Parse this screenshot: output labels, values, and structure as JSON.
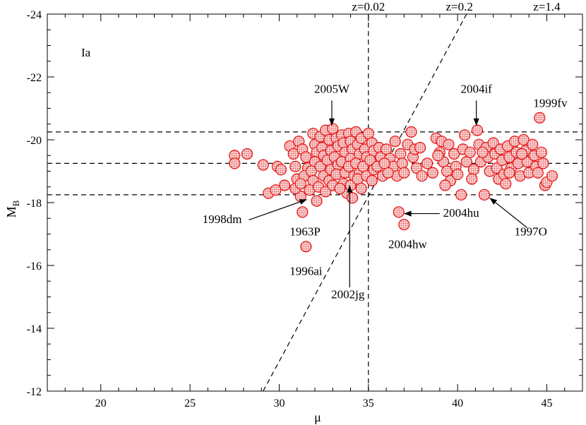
{
  "chart_data": {
    "type": "scatter",
    "panel_label": "Ia",
    "xlabel": "μ",
    "ylabel_main": "M",
    "ylabel_sub": "B",
    "xlim": [
      17,
      47
    ],
    "ylim": [
      -12,
      -24
    ],
    "y_axis_inverted": true,
    "x_ticks": [
      20,
      25,
      30,
      35,
      40,
      45
    ],
    "x_tick_labels": [
      "20",
      "25",
      "30",
      "35",
      "40",
      "45"
    ],
    "y_ticks": [
      -12,
      -14,
      -16,
      -18,
      -20,
      -22,
      -24
    ],
    "y_tick_labels": [
      "-12",
      "-14",
      "-16",
      "-18",
      "-20",
      "-22",
      "-24"
    ],
    "grid": false,
    "marker": {
      "fill": "#f4a0a0",
      "stroke": "#e81010",
      "pattern": "dotted-circle"
    },
    "reference_lines": {
      "horizontal_MB": [
        -20.25,
        -19.25,
        -18.25
      ],
      "vertical_mu": 35,
      "limit_line": {
        "from": [
          29.1,
          -12
        ],
        "to": [
          40.5,
          -24
        ]
      }
    },
    "top_labels": [
      {
        "text": "z=0.02",
        "x": 35
      },
      {
        "text": "z=0.2",
        "x": 40.1
      },
      {
        "text": "z=1.4",
        "x": 45.0
      }
    ],
    "annotations": [
      {
        "text": "2005W",
        "label_at": [
          32.95,
          -21.5
        ],
        "arrow_from": [
          32.95,
          -21.25
        ],
        "arrow_to": [
          32.95,
          -20.45
        ]
      },
      {
        "text": "2004if",
        "label_at": [
          41.05,
          -21.5
        ],
        "arrow_from": [
          41.05,
          -21.25
        ],
        "arrow_to": [
          41.05,
          -20.45
        ]
      },
      {
        "text": "1999fv",
        "label_at": [
          45.2,
          -21.05
        ]
      },
      {
        "text": "1998dm",
        "label_at": [
          26.8,
          -17.35
        ],
        "arrow_from": [
          28.3,
          -17.45
        ],
        "arrow_to": [
          31.55,
          -18.1
        ]
      },
      {
        "text": "1963P",
        "label_at": [
          31.45,
          -16.95
        ]
      },
      {
        "text": "2004hu",
        "label_at": [
          40.2,
          -17.55
        ],
        "arrow_from": [
          39.0,
          -17.65
        ],
        "arrow_to": [
          37.0,
          -17.65
        ]
      },
      {
        "text": "2004hw",
        "label_at": [
          37.2,
          -16.55
        ]
      },
      {
        "text": "1997O",
        "label_at": [
          44.1,
          -16.95
        ],
        "arrow_from": [
          43.9,
          -17.2
        ],
        "arrow_to": [
          41.8,
          -18.15
        ]
      },
      {
        "text": "1996ai",
        "label_at": [
          31.5,
          -15.7
        ]
      },
      {
        "text": "2002jg",
        "label_at": [
          33.85,
          -14.95
        ],
        "arrow_from": [
          33.95,
          -15.3
        ],
        "arrow_to": [
          33.95,
          -18.55
        ]
      }
    ],
    "points": [
      [
        27.5,
        -19.5
      ],
      [
        27.5,
        -19.25
      ],
      [
        28.2,
        -19.55
      ],
      [
        29.1,
        -19.2
      ],
      [
        29.9,
        -19.15
      ],
      [
        30.1,
        -19.05
      ],
      [
        30.3,
        -18.55
      ],
      [
        29.4,
        -18.3
      ],
      [
        29.8,
        -18.4
      ],
      [
        31.3,
        -17.7
      ],
      [
        31.5,
        -16.6
      ],
      [
        31.2,
        -18.2
      ],
      [
        30.6,
        -19.8
      ],
      [
        30.8,
        -19.55
      ],
      [
        30.9,
        -19.15
      ],
      [
        31.0,
        -18.75
      ],
      [
        30.9,
        -18.45
      ],
      [
        31.1,
        -19.95
      ],
      [
        31.3,
        -19.7
      ],
      [
        31.5,
        -19.45
      ],
      [
        31.6,
        -19.1
      ],
      [
        31.4,
        -18.85
      ],
      [
        31.2,
        -18.6
      ],
      [
        31.9,
        -20.2
      ],
      [
        32.0,
        -19.85
      ],
      [
        32.1,
        -19.6
      ],
      [
        32.0,
        -19.3
      ],
      [
        31.8,
        -19.0
      ],
      [
        31.9,
        -18.7
      ],
      [
        31.7,
        -18.4
      ],
      [
        32.3,
        -20.1
      ],
      [
        32.4,
        -19.75
      ],
      [
        32.5,
        -19.5
      ],
      [
        32.3,
        -19.15
      ],
      [
        32.5,
        -18.85
      ],
      [
        32.2,
        -18.5
      ],
      [
        32.6,
        -20.3
      ],
      [
        32.8,
        -20.0
      ],
      [
        32.9,
        -19.65
      ],
      [
        32.7,
        -19.35
      ],
      [
        32.9,
        -19.05
      ],
      [
        32.8,
        -18.7
      ],
      [
        32.6,
        -18.35
      ],
      [
        33.0,
        -20.35
      ],
      [
        33.2,
        -20.05
      ],
      [
        33.3,
        -19.8
      ],
      [
        33.1,
        -19.45
      ],
      [
        33.3,
        -19.2
      ],
      [
        33.2,
        -18.9
      ],
      [
        33.0,
        -18.55
      ],
      [
        33.5,
        -20.15
      ],
      [
        33.6,
        -19.9
      ],
      [
        33.7,
        -19.6
      ],
      [
        33.5,
        -19.3
      ],
      [
        33.7,
        -18.95
      ],
      [
        33.6,
        -18.6
      ],
      [
        33.8,
        -18.3
      ],
      [
        33.9,
        -20.2
      ],
      [
        34.0,
        -19.95
      ],
      [
        34.1,
        -19.7
      ],
      [
        34.0,
        -19.4
      ],
      [
        33.9,
        -19.15
      ],
      [
        34.2,
        -18.85
      ],
      [
        34.0,
        -18.55
      ],
      [
        34.1,
        -18.15
      ],
      [
        34.3,
        -20.25
      ],
      [
        34.4,
        -19.85
      ],
      [
        34.5,
        -19.55
      ],
      [
        34.3,
        -19.25
      ],
      [
        34.5,
        -18.95
      ],
      [
        34.4,
        -18.75
      ],
      [
        34.6,
        -20.05
      ],
      [
        34.8,
        -19.7
      ],
      [
        34.9,
        -19.45
      ],
      [
        34.7,
        -19.15
      ],
      [
        34.9,
        -18.85
      ],
      [
        35.0,
        -20.2
      ],
      [
        35.2,
        -19.9
      ],
      [
        35.3,
        -19.65
      ],
      [
        35.1,
        -19.35
      ],
      [
        35.3,
        -19.05
      ],
      [
        35.2,
        -18.7
      ],
      [
        35.6,
        -19.75
      ],
      [
        35.7,
        -19.45
      ],
      [
        35.5,
        -19.15
      ],
      [
        35.8,
        -18.85
      ],
      [
        36.0,
        -19.7
      ],
      [
        36.2,
        -19.4
      ],
      [
        36.4,
        -19.15
      ],
      [
        36.6,
        -18.85
      ],
      [
        36.1,
        -18.95
      ],
      [
        36.8,
        -19.55
      ],
      [
        36.9,
        -19.25
      ],
      [
        37.0,
        -18.95
      ],
      [
        37.2,
        -19.85
      ],
      [
        37.4,
        -20.25
      ],
      [
        37.5,
        -19.45
      ],
      [
        37.7,
        -19.1
      ],
      [
        37.6,
        -19.7
      ],
      [
        38.0,
        -18.85
      ],
      [
        38.3,
        -19.25
      ],
      [
        38.6,
        -18.95
      ],
      [
        36.7,
        -17.7
      ],
      [
        37.0,
        -17.3
      ],
      [
        38.8,
        -20.05
      ],
      [
        39.0,
        -19.6
      ],
      [
        39.2,
        -19.3
      ],
      [
        39.1,
        -19.95
      ],
      [
        39.4,
        -19.0
      ],
      [
        39.6,
        -18.7
      ],
      [
        39.3,
        -18.55
      ],
      [
        39.8,
        -19.55
      ],
      [
        39.9,
        -19.15
      ],
      [
        40.0,
        -18.9
      ],
      [
        40.2,
        -18.25
      ],
      [
        40.3,
        -19.7
      ],
      [
        40.5,
        -19.3
      ],
      [
        40.4,
        -20.15
      ],
      [
        40.7,
        -19.6
      ],
      [
        40.9,
        -19.05
      ],
      [
        41.1,
        -20.3
      ],
      [
        41.2,
        -19.85
      ],
      [
        41.3,
        -19.3
      ],
      [
        41.5,
        -18.25
      ],
      [
        41.6,
        -19.75
      ],
      [
        41.7,
        -19.45
      ],
      [
        41.8,
        -19.0
      ],
      [
        42.0,
        -19.9
      ],
      [
        42.1,
        -19.55
      ],
      [
        42.2,
        -19.1
      ],
      [
        42.3,
        -18.75
      ],
      [
        42.4,
        -19.7
      ],
      [
        42.5,
        -19.35
      ],
      [
        42.6,
        -18.9
      ],
      [
        42.7,
        -18.6
      ],
      [
        42.8,
        -19.8
      ],
      [
        42.9,
        -19.45
      ],
      [
        43.0,
        -19.1
      ],
      [
        43.2,
        -19.95
      ],
      [
        43.3,
        -19.6
      ],
      [
        43.4,
        -19.25
      ],
      [
        43.5,
        -18.85
      ],
      [
        43.7,
        -20.0
      ],
      [
        43.8,
        -19.65
      ],
      [
        43.9,
        -19.3
      ],
      [
        44.0,
        -18.95
      ],
      [
        44.2,
        -19.85
      ],
      [
        44.3,
        -19.5
      ],
      [
        44.4,
        -19.15
      ],
      [
        44.6,
        -20.7
      ],
      [
        44.7,
        -19.6
      ],
      [
        44.8,
        -19.25
      ],
      [
        44.9,
        -18.55
      ],
      [
        45.0,
        -18.65
      ],
      [
        45.3,
        -18.85
      ],
      [
        44.5,
        -18.95
      ],
      [
        36.5,
        -19.95
      ],
      [
        37.9,
        -19.75
      ],
      [
        38.9,
        -19.5
      ],
      [
        39.5,
        -19.85
      ],
      [
        40.8,
        -18.75
      ],
      [
        41.4,
        -19.6
      ],
      [
        42.9,
        -18.95
      ],
      [
        43.6,
        -19.55
      ],
      [
        35.9,
        -19.25
      ],
      [
        34.6,
        -18.45
      ],
      [
        33.4,
        -18.45
      ],
      [
        32.1,
        -18.05
      ]
    ]
  }
}
